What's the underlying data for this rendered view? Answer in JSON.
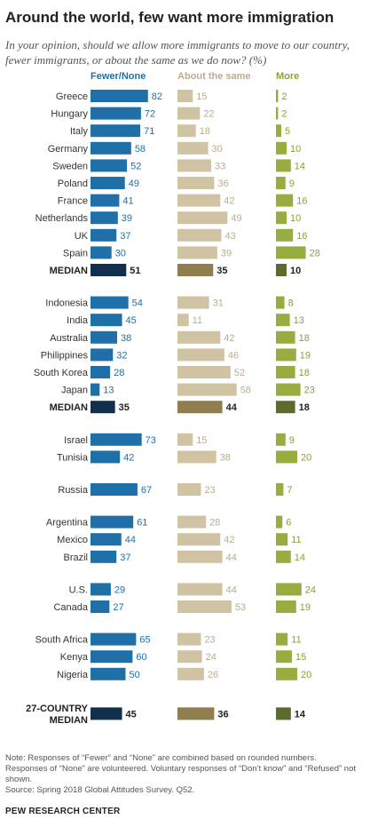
{
  "title": "Around the world, few want more immigration",
  "subtitle": "In your opinion, should we allow more immigrants to move to our country, fewer immigrants, or about the same as we do now? (%)",
  "notes": [
    "Note: Responses of “Fewer” and “None” are combined based on rounded numbers.",
    "Responses of “None” are volunteered. Voluntary responses of “Don’t know” and “Refused” not shown."
  ],
  "source": "Source: Spring 2018 Global Attitudes Survey. Q52.",
  "brand": "PEW RESEARCH CENTER",
  "colors": {
    "fewer": "#1f6fa8",
    "fewer_median": "#12304d",
    "same": "#cfc3a3",
    "same_median": "#8f7d4e",
    "more": "#97ad3f",
    "more_median": "#5a6b2c",
    "fewer_text": "#1f6fa8",
    "same_text": "#b8ad8e",
    "more_text": "#8aa038"
  },
  "chart_data": {
    "type": "bar",
    "series": [
      {
        "name": "Fewer/None"
      },
      {
        "name": "About the same"
      },
      {
        "name": "More"
      }
    ],
    "groups": [
      {
        "rows": [
          {
            "label": "Greece",
            "values": [
              82,
              15,
              2
            ]
          },
          {
            "label": "Hungary",
            "values": [
              72,
              22,
              2
            ]
          },
          {
            "label": "Italy",
            "values": [
              71,
              18,
              5
            ]
          },
          {
            "label": "Germany",
            "values": [
              58,
              30,
              10
            ]
          },
          {
            "label": "Sweden",
            "values": [
              52,
              33,
              14
            ]
          },
          {
            "label": "Poland",
            "values": [
              49,
              36,
              9
            ]
          },
          {
            "label": "France",
            "values": [
              41,
              42,
              16
            ]
          },
          {
            "label": "Netherlands",
            "values": [
              39,
              49,
              10
            ]
          },
          {
            "label": "UK",
            "values": [
              37,
              43,
              16
            ]
          },
          {
            "label": "Spain",
            "values": [
              30,
              39,
              28
            ]
          },
          {
            "label": "MEDIAN",
            "values": [
              51,
              35,
              10
            ],
            "median": true
          }
        ]
      },
      {
        "rows": [
          {
            "label": "Indonesia",
            "values": [
              54,
              31,
              8
            ]
          },
          {
            "label": "India",
            "values": [
              45,
              11,
              13
            ]
          },
          {
            "label": "Australia",
            "values": [
              38,
              42,
              18
            ]
          },
          {
            "label": "Philippines",
            "values": [
              32,
              46,
              19
            ]
          },
          {
            "label": "South Korea",
            "values": [
              28,
              52,
              18
            ]
          },
          {
            "label": "Japan",
            "values": [
              13,
              58,
              23
            ]
          },
          {
            "label": "MEDIAN",
            "values": [
              35,
              44,
              18
            ],
            "median": true
          }
        ]
      },
      {
        "rows": [
          {
            "label": "Israel",
            "values": [
              73,
              15,
              9
            ]
          },
          {
            "label": "Tunisia",
            "values": [
              42,
              38,
              20
            ]
          }
        ]
      },
      {
        "rows": [
          {
            "label": "Russia",
            "values": [
              67,
              23,
              7
            ]
          }
        ]
      },
      {
        "rows": [
          {
            "label": "Argentina",
            "values": [
              61,
              28,
              6
            ]
          },
          {
            "label": "Mexico",
            "values": [
              44,
              42,
              11
            ]
          },
          {
            "label": "Brazil",
            "values": [
              37,
              44,
              14
            ]
          }
        ]
      },
      {
        "rows": [
          {
            "label": "U.S.",
            "values": [
              29,
              44,
              24
            ]
          },
          {
            "label": "Canada",
            "values": [
              27,
              53,
              19
            ]
          }
        ]
      },
      {
        "rows": [
          {
            "label": "South Africa",
            "values": [
              65,
              23,
              11
            ]
          },
          {
            "label": "Kenya",
            "values": [
              60,
              24,
              15
            ]
          },
          {
            "label": "Nigeria",
            "values": [
              50,
              26,
              20
            ]
          }
        ]
      },
      {
        "rows": [
          {
            "label": "27-COUNTRY\nMEDIAN",
            "values": [
              45,
              36,
              14
            ],
            "median": true
          }
        ]
      }
    ]
  }
}
